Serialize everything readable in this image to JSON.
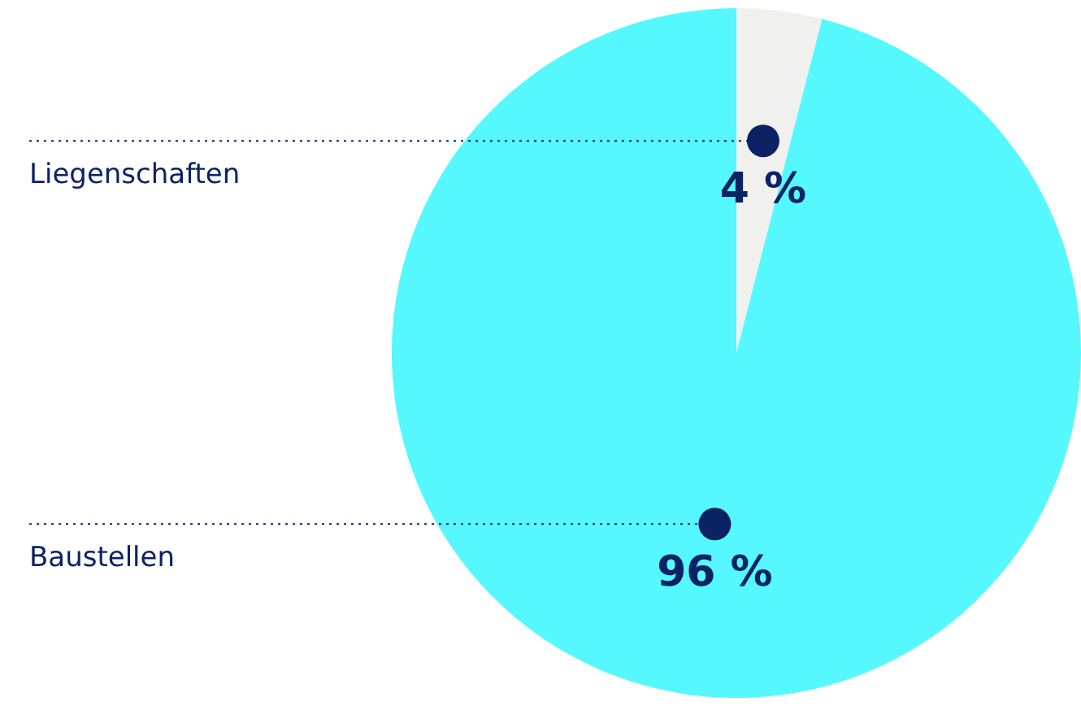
{
  "chart_data": {
    "type": "pie",
    "categories": [
      "Liegenschaften",
      "Baustellen"
    ],
    "values": [
      4,
      96
    ],
    "colors": [
      "#f0f0ee",
      "#55f8ff"
    ],
    "value_labels": [
      "4 %",
      "96 %"
    ],
    "legend": false
  }
}
